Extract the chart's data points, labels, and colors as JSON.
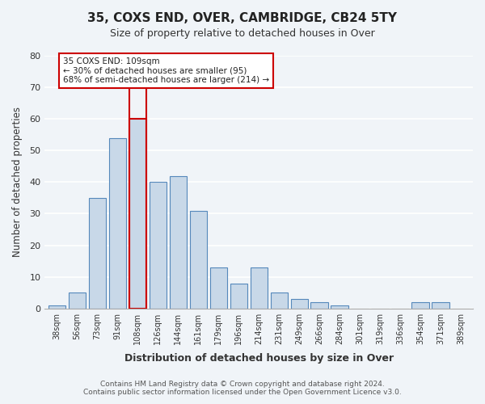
{
  "title": "35, COXS END, OVER, CAMBRIDGE, CB24 5TY",
  "subtitle": "Size of property relative to detached houses in Over",
  "xlabel": "Distribution of detached houses by size in Over",
  "ylabel": "Number of detached properties",
  "categories": [
    "38sqm",
    "56sqm",
    "73sqm",
    "91sqm",
    "108sqm",
    "126sqm",
    "144sqm",
    "161sqm",
    "179sqm",
    "196sqm",
    "214sqm",
    "231sqm",
    "249sqm",
    "266sqm",
    "284sqm",
    "301sqm",
    "319sqm",
    "336sqm",
    "354sqm",
    "371sqm",
    "389sqm"
  ],
  "values": [
    1,
    5,
    35,
    54,
    60,
    40,
    42,
    31,
    13,
    8,
    13,
    5,
    3,
    2,
    1,
    0,
    0,
    0,
    2,
    2,
    0
  ],
  "bar_color": "#c8d8e8",
  "bar_edge_color": "#5588bb",
  "highlight_bar_index": 4,
  "highlight_bar_color": "#c8d8e8",
  "highlight_bar_edge_color": "#cc0000",
  "ylim": [
    0,
    80
  ],
  "yticks": [
    0,
    10,
    20,
    30,
    40,
    50,
    60,
    70,
    80
  ],
  "annotation_title": "35 COXS END: 109sqm",
  "annotation_line1": "← 30% of detached houses are smaller (95)",
  "annotation_line2": "68% of semi-detached houses are larger (214) →",
  "annotation_box_color": "#ffffff",
  "annotation_box_edge": "#cc0000",
  "background_color": "#f0f4f8",
  "footer_line1": "Contains HM Land Registry data © Crown copyright and database right 2024.",
  "footer_line2": "Contains public sector information licensed under the Open Government Licence v3.0."
}
